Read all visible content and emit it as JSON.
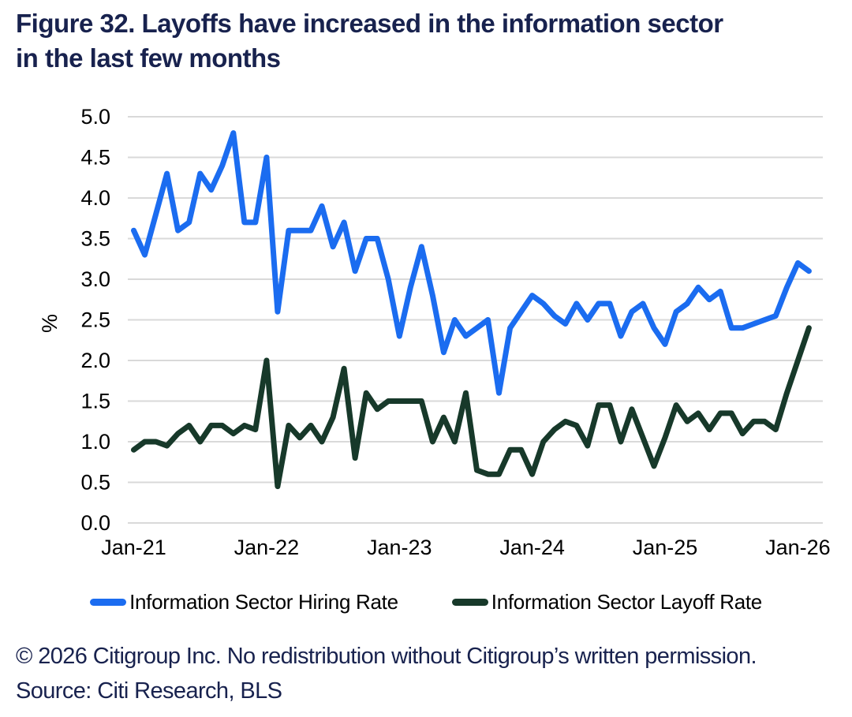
{
  "figure": {
    "title_line1": "Figure 32. Layoffs have increased in the information sector",
    "title_line2": "in the last few months"
  },
  "chart_data": {
    "type": "line",
    "frequency": "monthly",
    "x_start": "Jan-21",
    "x_end": "Feb-26",
    "x_tick_labels": [
      "Jan-21",
      "Jan-22",
      "Jan-23",
      "Jan-24",
      "Jan-25",
      "Jan-26"
    ],
    "months_per_tick": 12,
    "ylabel": "%",
    "ylim": [
      0.0,
      5.0
    ],
    "ytick_step": 0.5,
    "grid": "horizontal",
    "legend_position": "bottom",
    "series": [
      {
        "name": "Information Sector Hiring Rate",
        "color": "#1b6cf0",
        "values": [
          3.6,
          3.3,
          3.8,
          4.3,
          3.6,
          3.7,
          4.3,
          4.1,
          4.4,
          4.8,
          3.7,
          3.7,
          4.5,
          2.6,
          3.6,
          3.6,
          3.6,
          3.9,
          3.4,
          3.7,
          3.1,
          3.5,
          3.5,
          3.0,
          2.3,
          2.9,
          3.4,
          2.8,
          2.1,
          2.5,
          2.3,
          2.4,
          2.5,
          1.6,
          2.4,
          2.6,
          2.8,
          2.7,
          2.55,
          2.45,
          2.7,
          2.5,
          2.7,
          2.7,
          2.3,
          2.6,
          2.7,
          2.4,
          2.2,
          2.6,
          2.7,
          2.9,
          2.75,
          2.85,
          2.4,
          2.4,
          2.45,
          2.5,
          2.55,
          2.9,
          3.2,
          3.1
        ]
      },
      {
        "name": "Information Sector Layoff Rate",
        "color": "#17392a",
        "values": [
          0.9,
          1.0,
          1.0,
          0.95,
          1.1,
          1.2,
          1.0,
          1.2,
          1.2,
          1.1,
          1.2,
          1.15,
          2.0,
          0.45,
          1.2,
          1.05,
          1.2,
          1.0,
          1.3,
          1.9,
          0.8,
          1.6,
          1.4,
          1.5,
          1.5,
          1.5,
          1.5,
          1.0,
          1.3,
          1.0,
          1.6,
          0.65,
          0.6,
          0.6,
          0.9,
          0.9,
          0.6,
          1.0,
          1.15,
          1.25,
          1.2,
          0.95,
          1.45,
          1.45,
          1.0,
          1.4,
          1.05,
          0.7,
          1.05,
          1.45,
          1.25,
          1.35,
          1.15,
          1.35,
          1.35,
          1.1,
          1.25,
          1.25,
          1.15,
          1.6,
          2.0,
          2.4
        ]
      }
    ]
  },
  "footer": {
    "copyright": "© 2026 Citigroup Inc. No redistribution without Citigroup’s written permission.",
    "source": "Source: Citi Research, BLS"
  },
  "colors": {
    "title_text": "#18224e",
    "footer_text": "#18224e",
    "gridline": "#d9d9d9",
    "axis_text": "#000000",
    "background": "#ffffff"
  }
}
